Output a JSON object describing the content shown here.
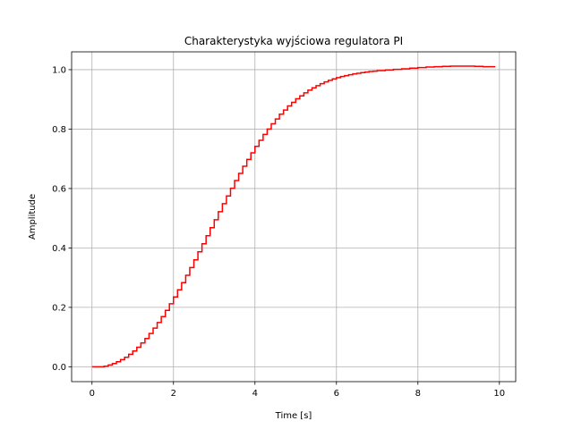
{
  "chart_data": {
    "type": "line",
    "title": "Charakterystyka wyjściowa regulatora PI",
    "xlabel": "Time [s]",
    "ylabel": "Amplitude",
    "xlim": [
      -0.5,
      10.4
    ],
    "ylim": [
      -0.05,
      1.06
    ],
    "grid": true,
    "xticks": [
      0,
      2,
      4,
      6,
      8,
      10
    ],
    "xtick_labels": [
      "0",
      "2",
      "4",
      "6",
      "8",
      "10"
    ],
    "yticks": [
      0.0,
      0.2,
      0.4,
      0.6,
      0.8,
      1.0
    ],
    "ytick_labels": [
      "0.0",
      "0.2",
      "0.4",
      "0.6",
      "0.8",
      "1.0"
    ],
    "series": [
      {
        "color": "#ff0000",
        "style": "step-post",
        "x": [
          0.0,
          0.1,
          0.2,
          0.3,
          0.4,
          0.5,
          0.6,
          0.7,
          0.8,
          0.9,
          1.0,
          1.1,
          1.2,
          1.3,
          1.4,
          1.5,
          1.6,
          1.7,
          1.8,
          1.9,
          2.0,
          2.1,
          2.2,
          2.3,
          2.4,
          2.5,
          2.6,
          2.7,
          2.8,
          2.9,
          3.0,
          3.1,
          3.2,
          3.3,
          3.4,
          3.5,
          3.6,
          3.7,
          3.8,
          3.9,
          4.0,
          4.1,
          4.2,
          4.3,
          4.4,
          4.5,
          4.6,
          4.7,
          4.8,
          4.9,
          5.0,
          5.1,
          5.2,
          5.3,
          5.4,
          5.5,
          5.6,
          5.7,
          5.8,
          5.9,
          6.0,
          6.1,
          6.2,
          6.3,
          6.4,
          6.5,
          6.6,
          6.7,
          6.8,
          6.9,
          7.0,
          7.2,
          7.4,
          7.6,
          7.8,
          8.0,
          8.2,
          8.4,
          8.6,
          8.8,
          9.0,
          9.2,
          9.4,
          9.6,
          9.8,
          9.9
        ],
        "y": [
          0.0,
          0.0,
          0.0,
          0.002,
          0.006,
          0.011,
          0.017,
          0.024,
          0.032,
          0.042,
          0.053,
          0.066,
          0.08,
          0.095,
          0.112,
          0.13,
          0.149,
          0.169,
          0.19,
          0.212,
          0.235,
          0.259,
          0.283,
          0.308,
          0.334,
          0.36,
          0.387,
          0.414,
          0.441,
          0.468,
          0.495,
          0.522,
          0.549,
          0.575,
          0.601,
          0.627,
          0.651,
          0.675,
          0.698,
          0.72,
          0.742,
          0.762,
          0.782,
          0.8,
          0.818,
          0.834,
          0.85,
          0.864,
          0.878,
          0.89,
          0.902,
          0.912,
          0.922,
          0.931,
          0.939,
          0.946,
          0.953,
          0.959,
          0.964,
          0.969,
          0.973,
          0.977,
          0.98,
          0.983,
          0.986,
          0.988,
          0.99,
          0.992,
          0.994,
          0.995,
          0.997,
          0.999,
          1.001,
          1.003,
          1.005,
          1.007,
          1.009,
          1.01,
          1.011,
          1.012,
          1.012,
          1.012,
          1.011,
          1.01,
          1.01,
          1.01
        ]
      }
    ]
  }
}
